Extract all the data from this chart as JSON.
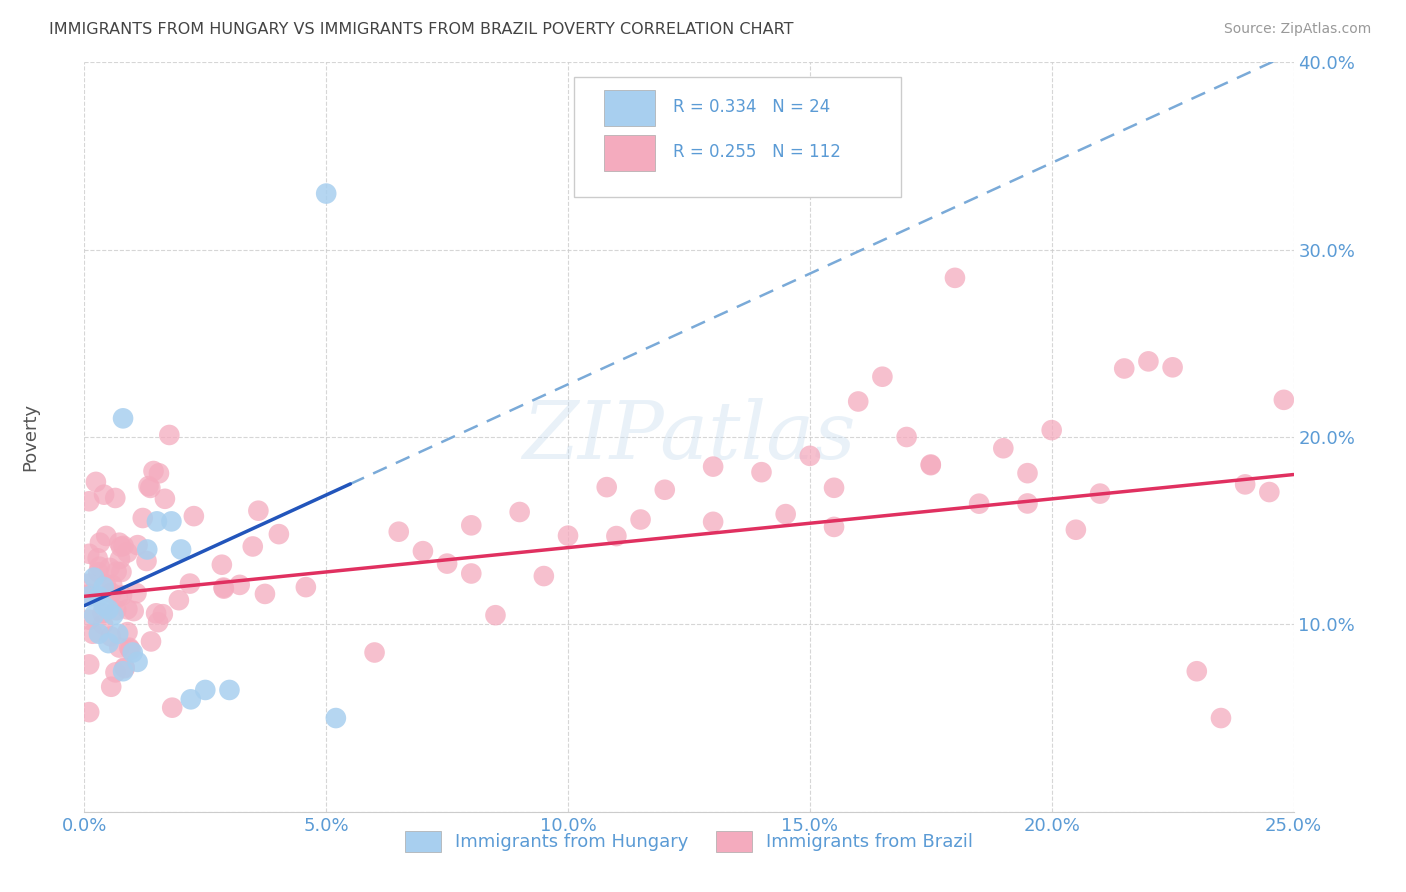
{
  "title": "IMMIGRANTS FROM HUNGARY VS IMMIGRANTS FROM BRAZIL POVERTY CORRELATION CHART",
  "source": "Source: ZipAtlas.com",
  "ylabel": "Poverty",
  "xlim": [
    0.0,
    0.25
  ],
  "ylim": [
    0.0,
    0.4
  ],
  "xtick_labels": [
    "0.0%",
    "5.0%",
    "10.0%",
    "15.0%",
    "20.0%",
    "25.0%"
  ],
  "ytick_labels": [
    "",
    "10.0%",
    "20.0%",
    "30.0%",
    "40.0%"
  ],
  "legend_hungary_R": "R = 0.334",
  "legend_hungary_N": "N = 24",
  "legend_brazil_R": "R = 0.255",
  "legend_brazil_N": "N = 112",
  "legend_label_hungary": "Immigrants from Hungary",
  "legend_label_brazil": "Immigrants from Brazil",
  "hungary_color": "#A8CFEF",
  "brazil_color": "#F4ABBE",
  "hungary_line_color": "#2255BB",
  "hungary_dash_color": "#7AAAD8",
  "brazil_line_color": "#E03060",
  "watermark": "ZIPatlas",
  "background_color": "#ffffff",
  "title_color": "#444444",
  "axis_label_color": "#5B9BD5",
  "ylabel_color": "#555555"
}
